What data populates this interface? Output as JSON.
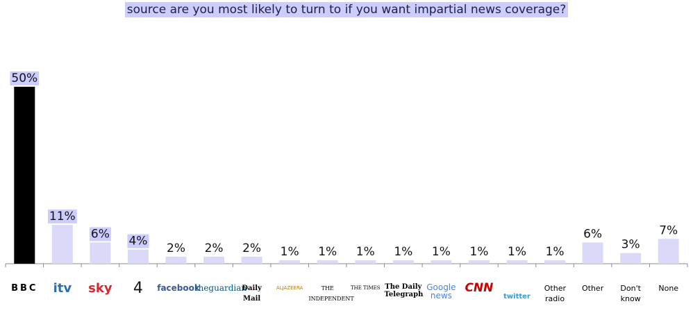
{
  "chart_data": {
    "type": "bar",
    "title": "source are you most likely to turn to if you want impartial news coverage?",
    "categories": [
      "BBC",
      "itv",
      "sky",
      "4",
      "facebook",
      "theguardian",
      "Daily Mail",
      "ALJAZEERA",
      "THE INDEPENDENT",
      "THE TIMES",
      "The Daily Telegraph",
      "Google news",
      "CNN",
      "twitter",
      "Other radio",
      "Other",
      "Don't know",
      "None"
    ],
    "values": [
      50,
      11,
      6,
      4,
      2,
      2,
      2,
      1,
      1,
      1,
      1,
      1,
      1,
      1,
      1,
      6,
      3,
      7
    ],
    "value_labels": [
      "50%",
      "11%",
      "6%",
      "4%",
      "2%",
      "2%",
      "2%",
      "1%",
      "1%",
      "1%",
      "1%",
      "1%",
      "1%",
      "1%",
      "1%",
      "6%",
      "3%",
      "7%"
    ],
    "colors": [
      "#000000",
      "#dadaf8",
      "#dadaf8",
      "#dadaf8",
      "#dadaf8",
      "#dadaf8",
      "#dadaf8",
      "#dadaf8",
      "#dadaf8",
      "#dadaf8",
      "#dadaf8",
      "#dadaf8",
      "#dadaf8",
      "#dadaf8",
      "#dadaf8",
      "#dadaf8",
      "#dadaf8",
      "#dadaf8"
    ]
  }
}
